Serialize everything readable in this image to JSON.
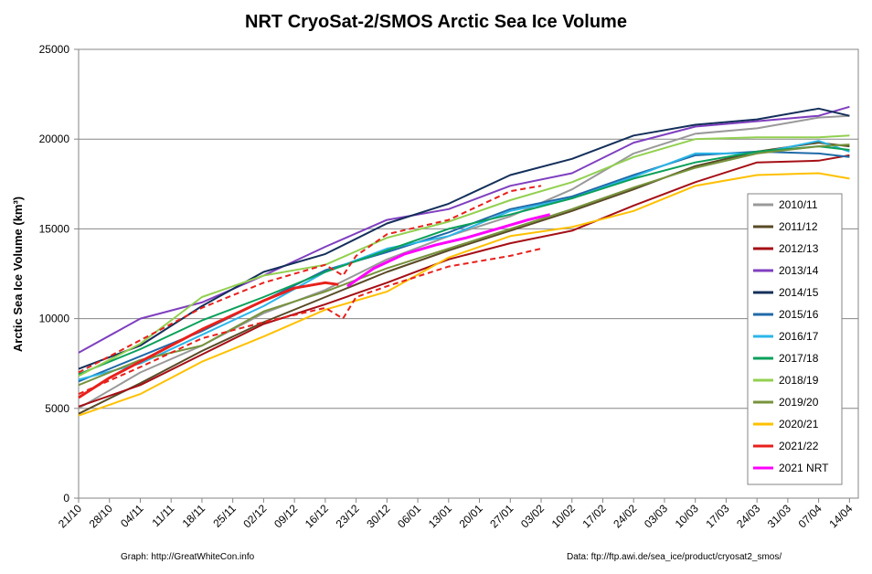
{
  "chart_data": {
    "type": "line",
    "title": "NRT CryoSat-2/SMOS Arctic Sea Ice Volume",
    "ylabel": "Arctic Sea Ice Volume (km³)",
    "xlabel": "",
    "ylim": [
      0,
      25000
    ],
    "yticks": [
      0,
      5000,
      10000,
      15000,
      20000,
      25000
    ],
    "xlim": [
      "2021-10-21",
      "2022-04-16"
    ],
    "xticks": [
      "21/10",
      "28/10",
      "04/11",
      "11/11",
      "18/11",
      "25/11",
      "02/12",
      "09/12",
      "16/12",
      "23/12",
      "30/12",
      "06/01",
      "13/01",
      "20/01",
      "27/01",
      "03/02",
      "10/02",
      "17/02",
      "24/02",
      "03/03",
      "10/03",
      "17/03",
      "24/03",
      "31/03",
      "07/04",
      "14/04"
    ],
    "grid": "horizontal",
    "legend_position": "right",
    "credit_left": "Graph: http://GreatWhiteCon.info",
    "credit_right": "Data: ftp://ftp.awi.de/sea_ice/product/cryosat2_smos/",
    "series": [
      {
        "name": "2010/11",
        "color": "#999999",
        "dash": "solid",
        "x": [
          "21/10",
          "04/11",
          "18/11",
          "02/12",
          "16/12",
          "30/12",
          "13/01",
          "27/01",
          "10/02",
          "24/02",
          "10/03",
          "24/03",
          "07/04",
          "14/04"
        ],
        "y": [
          5000,
          7000,
          8500,
          10300,
          11600,
          13300,
          14600,
          15700,
          17200,
          19200,
          20300,
          20600,
          21200,
          21300
        ]
      },
      {
        "name": "2011/12",
        "color": "#584a26",
        "dash": "solid",
        "x": [
          "21/10",
          "04/11",
          "18/11",
          "02/12",
          "16/12",
          "30/12",
          "13/01",
          "27/01",
          "10/02",
          "24/02",
          "10/03",
          "24/03",
          "07/04",
          "14/04"
        ],
        "y": [
          4700,
          6400,
          8200,
          9800,
          11200,
          12600,
          13800,
          14900,
          16000,
          17200,
          18500,
          19300,
          19800,
          19600
        ]
      },
      {
        "name": "2012/13",
        "color": "#a50f15",
        "dash": "solid",
        "x": [
          "21/10",
          "04/11",
          "18/11",
          "02/12",
          "16/12",
          "30/12",
          "13/01",
          "27/01",
          "10/02",
          "24/02",
          "10/03",
          "24/03",
          "07/04",
          "14/04"
        ],
        "y": [
          5100,
          6300,
          8000,
          9700,
          10800,
          12000,
          13300,
          14200,
          14900,
          16300,
          17600,
          18700,
          18800,
          19100
        ]
      },
      {
        "name": "2013/14",
        "color": "#7f3fbf",
        "dash": "solid",
        "x": [
          "21/10",
          "04/11",
          "18/11",
          "02/12",
          "16/12",
          "30/12",
          "13/01",
          "27/01",
          "10/02",
          "24/02",
          "10/03",
          "24/03",
          "07/04",
          "14/04"
        ],
        "y": [
          8100,
          10000,
          10900,
          12400,
          14000,
          15500,
          16100,
          17400,
          18100,
          19800,
          20700,
          21000,
          21300,
          21800
        ]
      },
      {
        "name": "2014/15",
        "color": "#142f5a",
        "dash": "solid",
        "x": [
          "21/10",
          "04/11",
          "18/11",
          "02/12",
          "16/12",
          "30/12",
          "13/01",
          "27/01",
          "10/02",
          "24/02",
          "10/03",
          "24/03",
          "07/04",
          "14/04"
        ],
        "y": [
          7200,
          8500,
          10700,
          12600,
          13600,
          15300,
          16400,
          18000,
          18900,
          20200,
          20800,
          21100,
          21700,
          21300
        ]
      },
      {
        "name": "2015/16",
        "color": "#1f6aa8",
        "dash": "solid",
        "x": [
          "21/10",
          "04/11",
          "18/11",
          "02/12",
          "16/12",
          "30/12",
          "13/01",
          "27/01",
          "10/02",
          "24/02",
          "10/03",
          "24/03",
          "07/04",
          "14/04"
        ],
        "y": [
          6500,
          7900,
          9300,
          11000,
          12700,
          13700,
          14800,
          16100,
          16800,
          18000,
          19100,
          19300,
          19200,
          19000
        ]
      },
      {
        "name": "2016/17",
        "color": "#2bb5e8",
        "dash": "solid",
        "x": [
          "21/10",
          "04/11",
          "18/11",
          "02/12",
          "16/12",
          "30/12",
          "13/01",
          "27/01",
          "10/02",
          "24/02",
          "10/03",
          "24/03",
          "07/04",
          "14/04"
        ],
        "y": [
          6600,
          7500,
          9100,
          10700,
          12600,
          13900,
          14600,
          16000,
          16700,
          17900,
          19200,
          19200,
          19900,
          19300
        ]
      },
      {
        "name": "2017/18",
        "color": "#0aa05a",
        "dash": "solid",
        "x": [
          "21/10",
          "04/11",
          "18/11",
          "02/12",
          "16/12",
          "30/12",
          "13/01",
          "27/01",
          "10/02",
          "24/02",
          "10/03",
          "24/03",
          "07/04",
          "14/04"
        ],
        "y": [
          6900,
          8300,
          9900,
          11200,
          12600,
          13800,
          15000,
          15800,
          16700,
          17800,
          18700,
          19300,
          19600,
          19400
        ]
      },
      {
        "name": "2018/19",
        "color": "#92d050",
        "dash": "solid",
        "x": [
          "21/10",
          "04/11",
          "18/11",
          "02/12",
          "16/12",
          "30/12",
          "13/01",
          "27/01",
          "10/02",
          "24/02",
          "10/03",
          "24/03",
          "07/04",
          "14/04"
        ],
        "y": [
          6800,
          8600,
          11200,
          12400,
          13000,
          14500,
          15400,
          16600,
          17600,
          19000,
          20000,
          20100,
          20100,
          20200
        ]
      },
      {
        "name": "2019/20",
        "color": "#77933c",
        "dash": "solid",
        "x": [
          "21/10",
          "04/11",
          "18/11",
          "02/12",
          "16/12",
          "30/12",
          "13/01",
          "27/01",
          "10/02",
          "24/02",
          "10/03",
          "24/03",
          "07/04",
          "14/04"
        ],
        "y": [
          6300,
          7700,
          8500,
          10400,
          11500,
          12800,
          13900,
          15000,
          16100,
          17300,
          18400,
          19200,
          19600,
          19700
        ]
      },
      {
        "name": "2020/21",
        "color": "#ffc000",
        "dash": "solid",
        "x": [
          "21/10",
          "04/11",
          "18/11",
          "02/12",
          "16/12",
          "30/12",
          "13/01",
          "27/01",
          "10/02",
          "24/02",
          "10/03",
          "24/03",
          "07/04",
          "14/04"
        ],
        "y": [
          4600,
          5800,
          7600,
          9000,
          10500,
          11500,
          13400,
          14600,
          15100,
          16000,
          17400,
          18000,
          18100,
          17800
        ]
      },
      {
        "name": "2021/22",
        "color": "#e8201b",
        "dash": "solid",
        "x": [
          "21/10",
          "28/10",
          "04/11",
          "11/11",
          "18/11",
          "25/11",
          "02/12",
          "09/12",
          "16/12",
          "19/12"
        ],
        "y": [
          5600,
          6700,
          7600,
          8500,
          9400,
          10200,
          11000,
          11700,
          12000,
          11900
        ]
      },
      {
        "name": "",
        "color": "#e8201b",
        "dash": "dashed",
        "x": [
          "21/10",
          "04/11",
          "18/11",
          "02/12",
          "16/12",
          "20/12",
          "23/12",
          "30/12",
          "13/01",
          "27/01",
          "03/02"
        ],
        "y": [
          7000,
          8800,
          10600,
          12000,
          13000,
          12400,
          13500,
          14700,
          15500,
          17100,
          17400
        ]
      },
      {
        "name": "",
        "color": "#e8201b",
        "dash": "dashed",
        "x": [
          "21/10",
          "04/11",
          "18/11",
          "02/12",
          "16/12",
          "20/12",
          "23/12",
          "30/12",
          "13/01",
          "27/01",
          "03/02"
        ],
        "y": [
          5800,
          7300,
          8900,
          9800,
          10600,
          10000,
          11200,
          11800,
          12900,
          13500,
          13900
        ]
      },
      {
        "name": "2021 NRT",
        "color": "#ff00ff",
        "dash": "solid",
        "x": [
          "21/12",
          "27/12",
          "03/01",
          "10/01",
          "17/01",
          "24/01",
          "31/01",
          "05/02"
        ],
        "y": [
          11800,
          12800,
          13600,
          14100,
          14500,
          15000,
          15500,
          15800
        ]
      }
    ]
  }
}
